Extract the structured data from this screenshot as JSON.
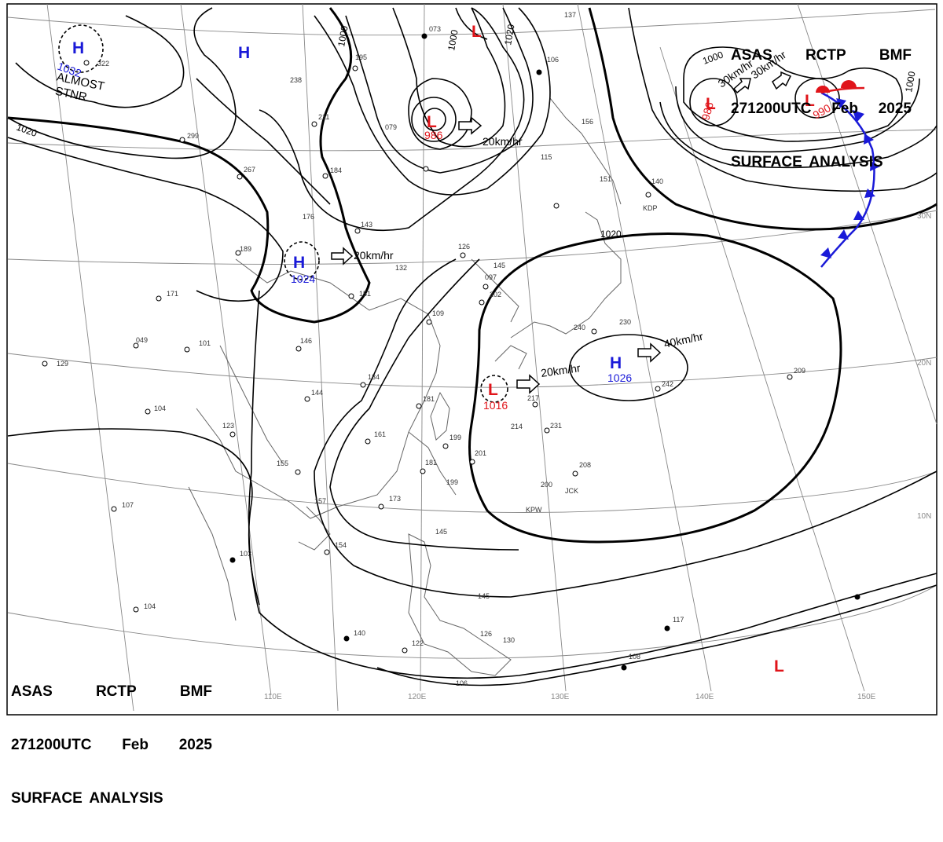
{
  "header_top": {
    "line1": [
      "ASAS",
      "RCTP",
      "BMF"
    ],
    "line2": [
      "271200UTC",
      "Feb",
      "2025"
    ],
    "line3": "SURFACE ANALYSIS"
  },
  "header_bottom": {
    "line1": [
      "ASAS",
      "RCTP",
      "BMF"
    ],
    "line2": [
      "271200UTC",
      "Feb",
      "2025"
    ],
    "line3": "SURFACE ANALYSIS"
  },
  "colors": {
    "high": "#1a1ad8",
    "low": "#e0141a",
    "cold_front": "#1a1ad8",
    "warm_front": "#e0141a",
    "isobar": "#000000",
    "grid": "#888888",
    "coast": "#777777"
  },
  "longitude_labels": [
    "110E",
    "120E",
    "130E",
    "140E",
    "150E"
  ],
  "latitude_labels": [
    "30N",
    "20N",
    "10N"
  ],
  "pressure_systems": [
    {
      "type": "H",
      "value": "1032",
      "note": "ALMOST STNR"
    },
    {
      "type": "H",
      "value": ""
    },
    {
      "type": "L",
      "value": ""
    },
    {
      "type": "L",
      "value": "986"
    },
    {
      "type": "H",
      "value": "1024"
    },
    {
      "type": "L",
      "value": "986"
    },
    {
      "type": "L",
      "value": "990"
    },
    {
      "type": "H",
      "value": "1026"
    },
    {
      "type": "L",
      "value": "1016"
    },
    {
      "type": "L",
      "value": ""
    }
  ],
  "movements": [
    {
      "text": "20km/hr"
    },
    {
      "text": "20km/hr"
    },
    {
      "text": "40km/hr"
    },
    {
      "text": "20km/hr"
    },
    {
      "text": "30km/hr"
    },
    {
      "text": "30km/hr"
    }
  ],
  "isobar_labels": [
    "1020",
    "1020",
    "1000",
    "1000",
    "1020",
    "1000",
    "1000"
  ],
  "station_labels": [
    "322",
    "299",
    "267",
    "238",
    "195",
    "073",
    "106",
    "137",
    "211",
    "184",
    "079",
    "156",
    "115",
    "151",
    "140",
    "143",
    "189",
    "176",
    "132",
    "126",
    "145",
    "097",
    "202",
    "171",
    "151",
    "109",
    "049",
    "101",
    "146",
    "230",
    "240",
    "129",
    "134",
    "144",
    "181",
    "217",
    "214",
    "231",
    "242",
    "209",
    "104",
    "123",
    "161",
    "199",
    "201",
    "155",
    "157",
    "181",
    "199",
    "208",
    "200",
    "173",
    "107",
    "103",
    "154",
    "145",
    "145",
    "104",
    "140",
    "122",
    "126",
    "130",
    "108",
    "106",
    "117",
    "JCK",
    "KPW",
    "KDP",
    "ALMOST",
    "STNR"
  ]
}
